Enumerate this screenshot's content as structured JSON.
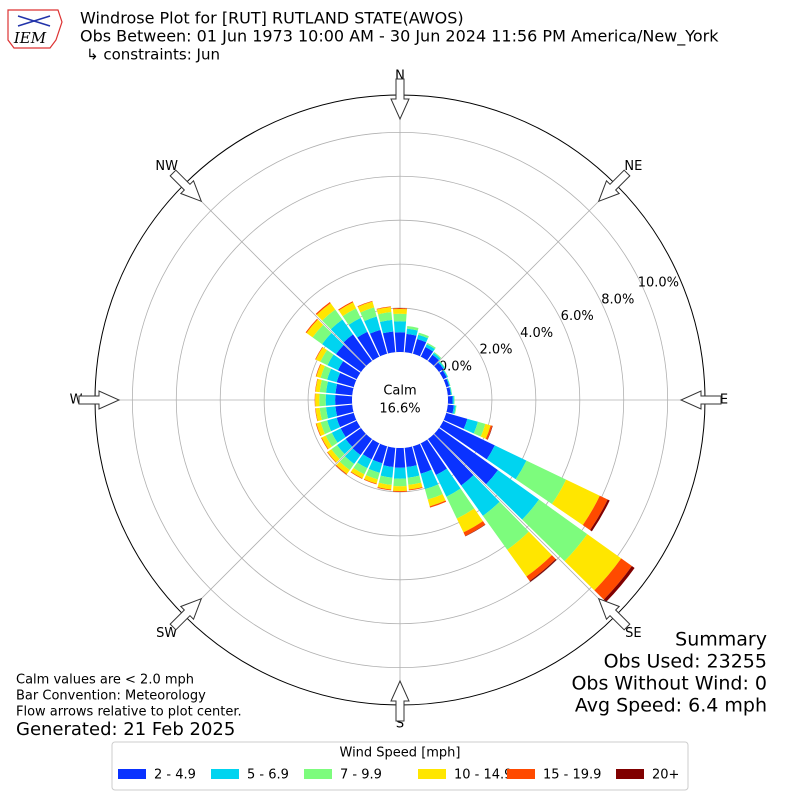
{
  "chart_data": {
    "type": "windrose",
    "title": "Windrose Plot for [RUT] RUTLAND STATE(AWOS)",
    "subtitle": "Obs Between: 01 Jun 1973 10:00 AM - 30 Jun 2024 11:56 PM America/New_York",
    "constraints": "↳ constraints: Jun",
    "directions": [
      0,
      10,
      20,
      30,
      40,
      50,
      60,
      70,
      80,
      90,
      100,
      110,
      120,
      130,
      140,
      150,
      160,
      170,
      180,
      190,
      200,
      210,
      220,
      230,
      240,
      250,
      260,
      270,
      280,
      290,
      300,
      310,
      320,
      330,
      340,
      350
    ],
    "series": [
      {
        "name": "2 - 4.9",
        "color": "#0a32ff",
        "values": [
          0.9,
          0.84,
          0.7,
          0.49,
          0.35,
          0.25,
          0.18,
          0.14,
          0.14,
          0.21,
          0.28,
          1.0,
          2.6,
          3.3,
          2.6,
          1.6,
          1.3,
          0.88,
          0.9,
          0.88,
          0.81,
          0.81,
          0.9,
          0.86,
          0.81,
          0.81,
          0.77,
          0.77,
          0.77,
          0.81,
          0.95,
          1.4,
          1.49,
          1.26,
          1.13,
          0.95
        ]
      },
      {
        "name": "5 - 6.9",
        "color": "#00d4f0",
        "values": [
          0.5,
          0.24,
          0.2,
          0.14,
          0.1,
          0.07,
          0.05,
          0.04,
          0.04,
          0.06,
          0.08,
          0.5,
          1.6,
          2.3,
          1.7,
          1.1,
          0.73,
          0.49,
          0.5,
          0.49,
          0.45,
          0.45,
          0.5,
          0.48,
          0.45,
          0.45,
          0.43,
          0.43,
          0.43,
          0.45,
          0.53,
          0.78,
          0.83,
          0.7,
          0.63,
          0.53
        ]
      },
      {
        "name": "7 - 9.9",
        "color": "#7dfc7d",
        "values": [
          0.34,
          0.12,
          0.1,
          0.07,
          0.05,
          0.03,
          0.02,
          0.02,
          0.02,
          0.03,
          0.04,
          0.35,
          2.0,
          2.7,
          1.9,
          1.1,
          0.49,
          0.33,
          0.34,
          0.33,
          0.31,
          0.31,
          0.34,
          0.32,
          0.31,
          0.31,
          0.29,
          0.29,
          0.29,
          0.31,
          0.36,
          0.53,
          0.56,
          0.48,
          0.43,
          0.36
        ]
      },
      {
        "name": "10 - 14.9",
        "color": "#ffe600",
        "values": [
          0.22,
          0,
          0,
          0,
          0,
          0,
          0,
          0,
          0,
          0,
          0,
          0.25,
          1.7,
          1.9,
          1.5,
          0.7,
          0.32,
          0.21,
          0.22,
          0.21,
          0.2,
          0.2,
          0.22,
          0.21,
          0.2,
          0.2,
          0.19,
          0.19,
          0.19,
          0.2,
          0.23,
          0.34,
          0.36,
          0.31,
          0.28,
          0.23
        ]
      },
      {
        "name": "15 - 19.9",
        "color": "#ff4a00",
        "values": [
          0.04,
          0,
          0,
          0,
          0,
          0,
          0,
          0,
          0,
          0,
          0,
          0.08,
          0.4,
          0.6,
          0.25,
          0.18,
          0.06,
          0.04,
          0.04,
          0.04,
          0.03,
          0.03,
          0.04,
          0.03,
          0.03,
          0.03,
          0.02,
          0.02,
          0.02,
          0.03,
          0.03,
          0.05,
          0.06,
          0.05,
          0.03,
          0.03
        ]
      },
      {
        "name": "20+",
        "color": "#800000",
        "values": [
          0,
          0,
          0,
          0,
          0,
          0,
          0,
          0,
          0,
          0,
          0,
          0.02,
          0.1,
          0.15,
          0.05,
          0.02,
          0,
          0,
          0,
          0,
          0,
          0,
          0,
          0,
          0,
          0,
          0,
          0,
          0,
          0,
          0,
          0,
          0,
          0,
          0,
          0
        ]
      }
    ],
    "ylim": [
      0,
      11.7
    ],
    "yticks": [
      {
        "value": 0,
        "label": "0.0%"
      },
      {
        "value": 2,
        "label": "2.0%"
      },
      {
        "value": 4,
        "label": "4.0%"
      },
      {
        "value": 6,
        "label": "6.0%"
      },
      {
        "value": 8,
        "label": "8.0%"
      },
      {
        "value": 10,
        "label": "10.0%"
      }
    ],
    "compass": [
      {
        "value": 0,
        "label": "N"
      },
      {
        "value": 45,
        "label": "NE"
      },
      {
        "value": 90,
        "label": "E"
      },
      {
        "value": 135,
        "label": "SE"
      },
      {
        "value": 180,
        "label": "S"
      },
      {
        "value": 225,
        "label": "SW"
      },
      {
        "value": 270,
        "label": "W"
      },
      {
        "value": 315,
        "label": "NW"
      }
    ],
    "calm": {
      "name": "Calm",
      "value": 16.6,
      "value_label": "16.6%"
    },
    "grid": true,
    "legend_title": "Wind Speed [mph]",
    "legend_position": "bottom",
    "summary": [
      "Summary",
      "Obs Used: 23255",
      "Obs Without Wind: 0",
      "Avg Speed: 6.4 mph"
    ],
    "notes": [
      "Calm values are < 2.0 mph",
      "Bar Convention: Meteorology",
      "Flow arrows relative to plot center."
    ],
    "generated": "Generated: 21 Feb 2025"
  }
}
